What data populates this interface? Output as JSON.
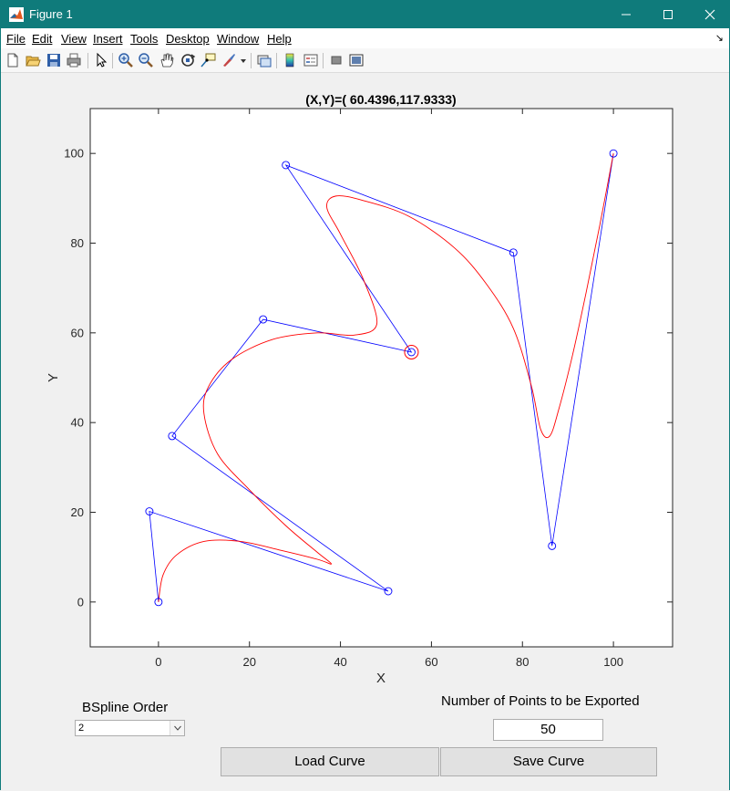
{
  "window": {
    "title": "Figure 1",
    "titlebar_color": "#0f7b7b"
  },
  "menu": [
    "File",
    "Edit",
    "View",
    "Insert",
    "Tools",
    "Desktop",
    "Window",
    "Help"
  ],
  "toolbar_icons": [
    "new-figure-icon",
    "open-file-icon",
    "save-icon",
    "print-icon",
    "pointer-icon",
    "zoom-in-icon",
    "zoom-out-icon",
    "pan-icon",
    "rotate-3d-icon",
    "data-cursor-icon",
    "brush-icon",
    "brush-dropdown-icon",
    "link-plot-icon",
    "colorbar-icon",
    "legend-icon",
    "hide-plot-tools-icon",
    "show-plot-tools-icon"
  ],
  "plot": {
    "title": "(X,Y)=( 60.4396,117.9333)",
    "xlabel": "X",
    "ylabel": "Y"
  },
  "chart_data": {
    "type": "line",
    "title": "(X,Y)=( 60.4396,117.9333)",
    "xlabel": "X",
    "ylabel": "Y",
    "xlim": [
      -15,
      113
    ],
    "ylim": [
      -10,
      110
    ],
    "xticks": [
      0,
      20,
      40,
      60,
      80,
      100
    ],
    "yticks": [
      0,
      20,
      40,
      60,
      80,
      100
    ],
    "grid": false,
    "colors": {
      "control_polygon": "#0000ff",
      "curve": "#ff0000",
      "selected": "#ff0000"
    },
    "control_points": [
      [
        0,
        0
      ],
      [
        -2,
        20.2
      ],
      [
        50.5,
        2.4
      ],
      [
        3,
        37
      ],
      [
        23,
        63
      ],
      [
        55.6,
        55.7
      ],
      [
        28,
        97.4
      ],
      [
        78,
        77.9
      ],
      [
        86.5,
        12.5
      ],
      [
        100,
        100
      ]
    ],
    "selected_point": [
      55.6,
      55.7
    ],
    "curve": [
      [
        0,
        0
      ],
      [
        1,
        6
      ],
      [
        4,
        10.5
      ],
      [
        10,
        13.5
      ],
      [
        18,
        13.5
      ],
      [
        27,
        11.5
      ],
      [
        35,
        9.5
      ],
      [
        38,
        8.5
      ],
      [
        35,
        11
      ],
      [
        28,
        17
      ],
      [
        20,
        25
      ],
      [
        13,
        33
      ],
      [
        10,
        42
      ],
      [
        11,
        48
      ],
      [
        16,
        54
      ],
      [
        25,
        58.5
      ],
      [
        35,
        60
      ],
      [
        43,
        59.5
      ],
      [
        48,
        62
      ],
      [
        45,
        72
      ],
      [
        40,
        82
      ],
      [
        37,
        88
      ],
      [
        39,
        90.5
      ],
      [
        45,
        89.5
      ],
      [
        55,
        86
      ],
      [
        65,
        79
      ],
      [
        72,
        71
      ],
      [
        78,
        61
      ],
      [
        82,
        48
      ],
      [
        84,
        38.5
      ],
      [
        86,
        37
      ],
      [
        88,
        43
      ],
      [
        91,
        55
      ],
      [
        94,
        69
      ],
      [
        97,
        84
      ],
      [
        100,
        100
      ]
    ]
  },
  "controls": {
    "bspline_order_label": "BSpline Order",
    "bspline_order_value": "2",
    "npts_label": "Number of Points to be Exported",
    "npts_value": "50",
    "load_button": "Load Curve",
    "save_button": "Save Curve"
  }
}
